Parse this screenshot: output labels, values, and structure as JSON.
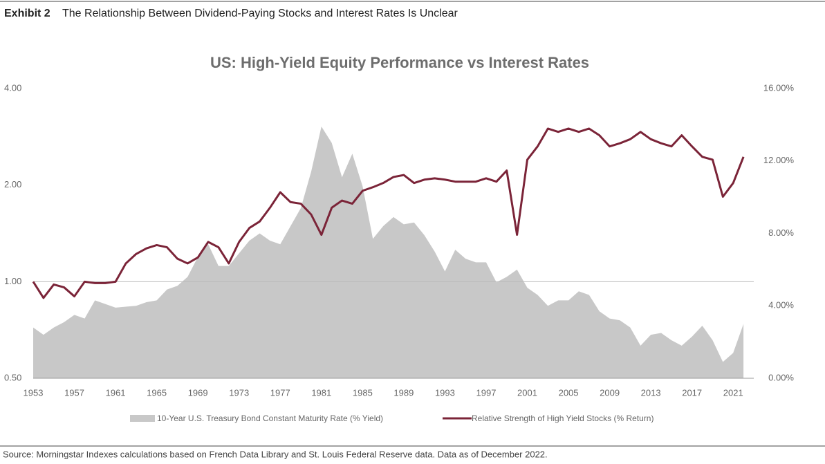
{
  "header": {
    "label": "Exhibit 2",
    "text": "The Relationship Between Dividend-Paying Stocks and Interest Rates Is Unclear"
  },
  "source": "Source: Morningstar Indexes calculations based on French Data Library and St. Louis Federal Reserve data. Data as of December 2022.",
  "chart_data": {
    "type": "line-area",
    "title": "US: High-Yield Equity Performance vs Interest Rates",
    "x": [
      1953,
      1954,
      1955,
      1956,
      1957,
      1958,
      1959,
      1960,
      1961,
      1962,
      1963,
      1964,
      1965,
      1966,
      1967,
      1968,
      1969,
      1970,
      1971,
      1972,
      1973,
      1974,
      1975,
      1976,
      1977,
      1978,
      1979,
      1980,
      1981,
      1982,
      1983,
      1984,
      1985,
      1986,
      1987,
      1988,
      1989,
      1990,
      1991,
      1992,
      1993,
      1994,
      1995,
      1996,
      1997,
      1998,
      1999,
      2000,
      2001,
      2002,
      2003,
      2004,
      2005,
      2006,
      2007,
      2008,
      2009,
      2010,
      2011,
      2012,
      2013,
      2014,
      2015,
      2016,
      2017,
      2018,
      2019,
      2020,
      2021,
      2022
    ],
    "xlim": [
      1953,
      2023
    ],
    "xticks": [
      1953,
      1957,
      1961,
      1965,
      1969,
      1973,
      1977,
      1981,
      1985,
      1989,
      1993,
      1997,
      2001,
      2005,
      2009,
      2013,
      2017,
      2021
    ],
    "ylim": [
      0.5,
      4
    ],
    "log_y": true,
    "yticks": [
      {
        "value": 0.5,
        "label": "0.50"
      },
      {
        "value": 1,
        "label": "1.00"
      },
      {
        "value": 2,
        "label": "2.00"
      },
      {
        "value": 4,
        "label": "4.00"
      }
    ],
    "y2lim": [
      0,
      16
    ],
    "y2ticks": [
      {
        "value": 0,
        "label": "0.00%"
      },
      {
        "value": 4,
        "label": "4.00%"
      },
      {
        "value": 8,
        "label": "8.00%"
      },
      {
        "value": 12,
        "label": "12.00%"
      },
      {
        "value": 16,
        "label": "16.00%"
      }
    ],
    "baseline": 1,
    "series": [
      {
        "name": "10-Year U.S. Treasury Bond Constant Maturity Rate (% Yield)",
        "color": "#c8c8c8",
        "style": "area",
        "axis": "y2",
        "values": [
          2.8,
          2.4,
          2.8,
          3.1,
          3.5,
          3.3,
          4.3,
          4.1,
          3.9,
          3.95,
          4.0,
          4.2,
          4.3,
          4.9,
          5.1,
          5.6,
          6.7,
          7.4,
          6.2,
          6.2,
          6.9,
          7.6,
          8.0,
          7.6,
          7.4,
          8.4,
          9.4,
          11.4,
          13.9,
          13.0,
          11.1,
          12.4,
          10.6,
          7.7,
          8.4,
          8.9,
          8.5,
          8.6,
          7.9,
          7.0,
          5.9,
          7.1,
          6.6,
          6.4,
          6.4,
          5.3,
          5.6,
          6.0,
          5.0,
          4.6,
          4.0,
          4.3,
          4.3,
          4.8,
          4.6,
          3.7,
          3.3,
          3.2,
          2.8,
          1.8,
          2.4,
          2.5,
          2.1,
          1.8,
          2.3,
          2.9,
          2.1,
          0.9,
          1.4,
          3.0
        ]
      },
      {
        "name": "Relative Strength of High Yield Stocks (% Return)",
        "color": "#7b2438",
        "style": "line",
        "axis": "y",
        "values": [
          1.0,
          0.89,
          0.98,
          0.96,
          0.9,
          1.0,
          0.99,
          0.99,
          1.0,
          1.14,
          1.22,
          1.27,
          1.3,
          1.28,
          1.18,
          1.14,
          1.19,
          1.33,
          1.28,
          1.14,
          1.33,
          1.47,
          1.54,
          1.7,
          1.9,
          1.77,
          1.75,
          1.62,
          1.4,
          1.7,
          1.79,
          1.75,
          1.92,
          1.97,
          2.03,
          2.12,
          2.15,
          2.03,
          2.08,
          2.1,
          2.08,
          2.05,
          2.05,
          2.05,
          2.1,
          2.05,
          2.22,
          1.4,
          2.4,
          2.64,
          3.0,
          2.93,
          3.0,
          2.93,
          3.0,
          2.86,
          2.64,
          2.7,
          2.78,
          2.93,
          2.78,
          2.7,
          2.64,
          2.86,
          2.64,
          2.45,
          2.4,
          1.84,
          2.03,
          2.45
        ]
      }
    ]
  }
}
